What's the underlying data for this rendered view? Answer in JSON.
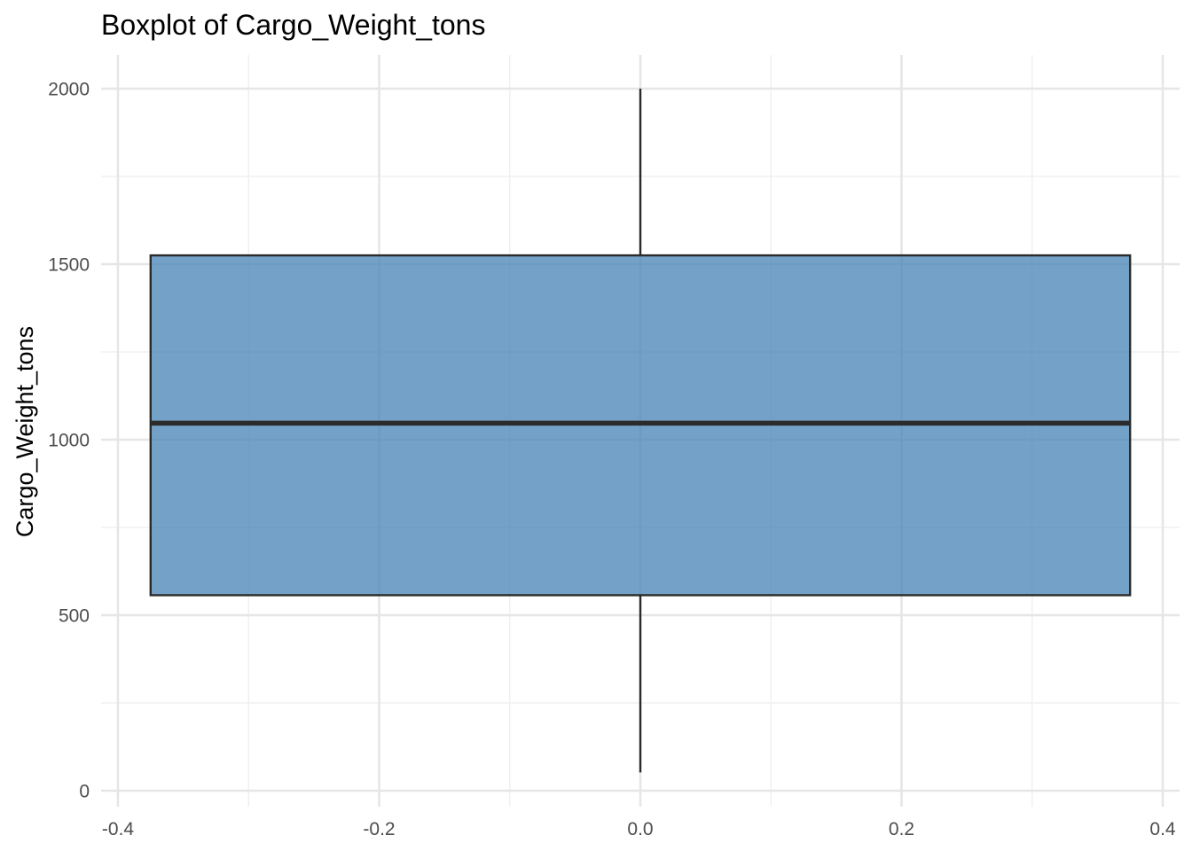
{
  "chart_data": {
    "type": "box",
    "title": "Boxplot of Cargo_Weight_tons",
    "xlabel": "",
    "ylabel": "Cargo_Weight_tons",
    "xlim": [
      -0.4,
      0.4
    ],
    "ylim": [
      0,
      2000
    ],
    "x_ticks": [
      -0.4,
      -0.2,
      0.0,
      0.2,
      0.4
    ],
    "x_tick_labels": [
      "-0.4",
      "-0.2",
      "0.0",
      "0.2",
      "0.4"
    ],
    "y_ticks": [
      0,
      500,
      1000,
      1500,
      2000
    ],
    "y_tick_labels": [
      "0",
      "500",
      "1000",
      "1500",
      "2000"
    ],
    "grid": true,
    "legend": "none",
    "box": {
      "x_center": 0,
      "x_left": -0.375,
      "x_right": 0.375,
      "whisker_low": 52,
      "q1": 557,
      "median": 1047,
      "q3": 1525,
      "whisker_high": 2000
    },
    "colors": {
      "box_fill": "#4682b4",
      "box_fill_opacity": 0.75,
      "box_stroke": "#2b2b2b",
      "grid_major": "#e6e6e6",
      "grid_minor": "#f0f0f0"
    }
  }
}
